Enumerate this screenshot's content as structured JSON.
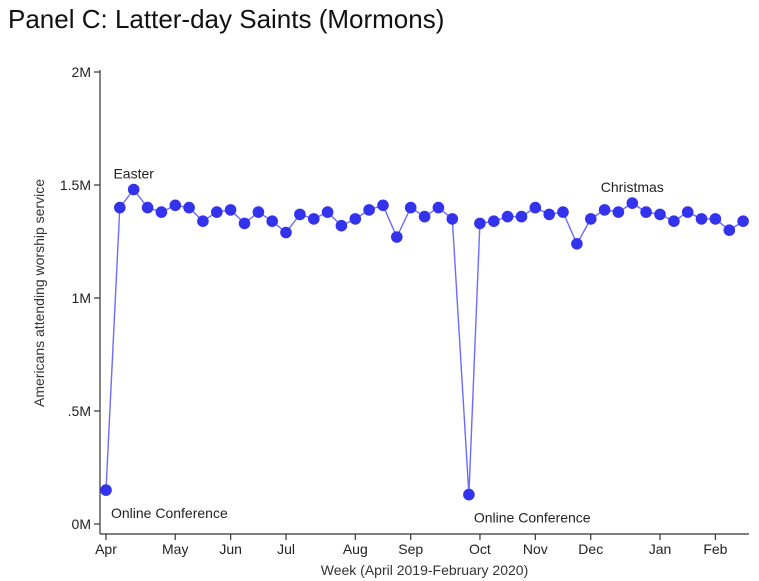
{
  "chart_data": {
    "type": "line",
    "title": "Panel C: Latter-day Saints (Mormons)",
    "xlabel": "Week (April 2019-February 2020)",
    "ylabel": "Americans attending  worship service",
    "ylim": [
      0,
      2000000
    ],
    "yticks": [
      {
        "value": 0,
        "label": "0M"
      },
      {
        "value": 500000,
        "label": ".5M"
      },
      {
        "value": 1000000,
        "label": "1M"
      },
      {
        "value": 1500000,
        "label": "1.5M"
      },
      {
        "value": 2000000,
        "label": "2M"
      }
    ],
    "xlim": [
      0,
      46.8
    ],
    "xticks": [
      {
        "week": 0,
        "label": "Apr"
      },
      {
        "week": 5,
        "label": "May"
      },
      {
        "week": 9,
        "label": "Jun"
      },
      {
        "week": 13,
        "label": "Jul"
      },
      {
        "week": 18,
        "label": "Aug"
      },
      {
        "week": 22,
        "label": "Sep"
      },
      {
        "week": 27,
        "label": "Oct"
      },
      {
        "week": 31,
        "label": "Nov"
      },
      {
        "week": 35,
        "label": "Dec"
      },
      {
        "week": 40,
        "label": "Jan"
      },
      {
        "week": 44,
        "label": "Feb"
      }
    ],
    "series": [
      {
        "color": "#3333ee",
        "segments": [
          [
            [
              0,
              150000
            ],
            [
              1,
              1400000
            ],
            [
              2,
              1480000
            ],
            [
              3,
              1400000
            ],
            [
              4,
              1380000
            ],
            [
              5,
              1410000
            ],
            [
              6,
              1400000
            ],
            [
              7,
              1340000
            ],
            [
              8,
              1380000
            ],
            [
              9,
              1390000
            ],
            [
              10,
              1330000
            ],
            [
              11,
              1380000
            ],
            [
              12,
              1340000
            ],
            [
              13,
              1290000
            ],
            [
              14,
              1370000
            ],
            [
              15,
              1350000
            ],
            [
              16,
              1380000
            ],
            [
              17,
              1320000
            ],
            [
              18,
              1350000
            ],
            [
              19,
              1390000
            ],
            [
              20,
              1410000
            ],
            [
              21,
              1270000
            ],
            [
              22,
              1400000
            ],
            [
              23,
              1360000
            ],
            [
              24,
              1400000
            ],
            [
              25,
              1350000
            ]
          ],
          [
            [
              26.2,
              130000
            ],
            [
              27,
              1330000
            ],
            [
              28,
              1340000
            ],
            [
              29,
              1360000
            ],
            [
              30,
              1360000
            ],
            [
              31,
              1400000
            ],
            [
              32,
              1370000
            ],
            [
              33,
              1380000
            ],
            [
              34,
              1240000
            ],
            [
              35,
              1350000
            ],
            [
              36,
              1390000
            ],
            [
              37,
              1380000
            ],
            [
              38,
              1420000
            ],
            [
              39,
              1380000
            ],
            [
              40,
              1370000
            ],
            [
              41,
              1340000
            ],
            [
              42,
              1380000
            ],
            [
              43,
              1350000
            ],
            [
              44,
              1350000
            ],
            [
              45,
              1300000
            ],
            [
              46,
              1340000
            ]
          ]
        ]
      }
    ],
    "annotations": [
      {
        "text": "Easter",
        "week": 2,
        "value": 1480000,
        "position": "above"
      },
      {
        "text": "Christmas",
        "week": 38,
        "value": 1420000,
        "position": "above"
      },
      {
        "text": "Online Conference",
        "week": 0,
        "value": 150000,
        "position": "below"
      },
      {
        "text": "Online Conference",
        "week": 26.2,
        "value": 130000,
        "position": "below"
      }
    ],
    "grid": false,
    "legend": "none"
  }
}
